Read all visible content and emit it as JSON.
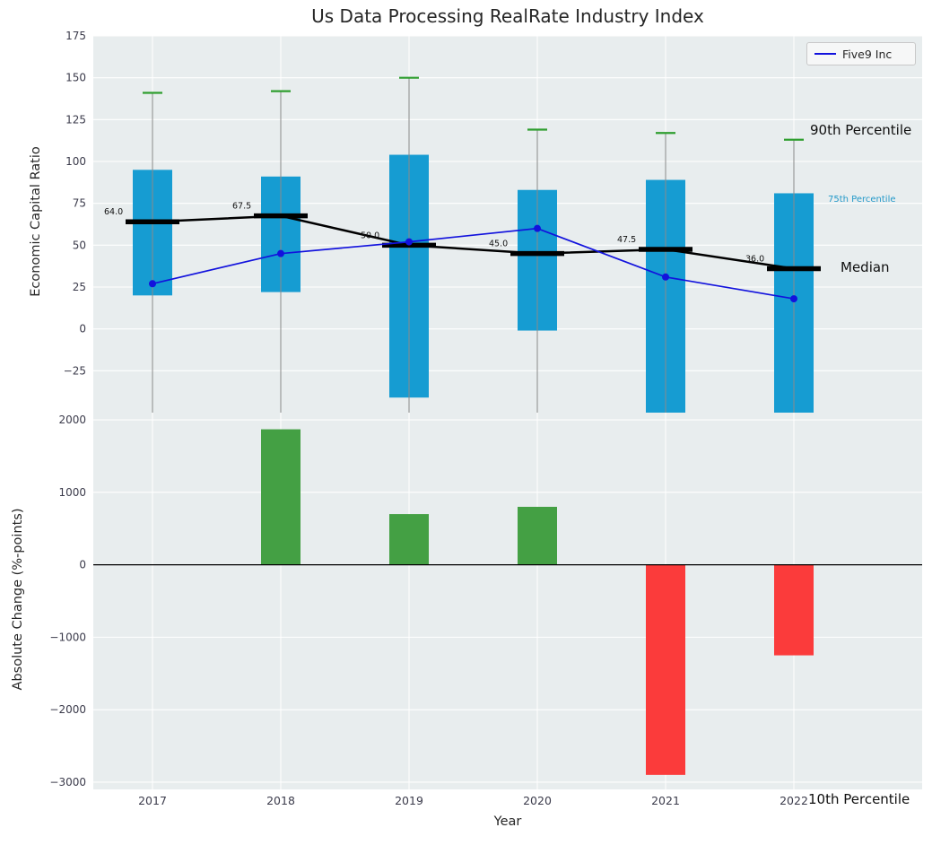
{
  "chart_data": {
    "type": "boxplot-with-line-and-bar",
    "title": "Us Data Processing RealRate Industry Index",
    "xlabel": "Year",
    "categories": [
      "2017",
      "2018",
      "2019",
      "2020",
      "2021",
      "2022"
    ],
    "legend": {
      "label": "Five9 Inc"
    },
    "annotations": {
      "p90": "90th Percentile",
      "p75": "75th Percentile",
      "median": "Median",
      "p10": "10th Percentile"
    },
    "top_chart": {
      "ylabel": "Economic Capital Ratio",
      "ylim": [
        -50,
        175
      ],
      "ytick_values": [
        175,
        150,
        125,
        100,
        75,
        50,
        25,
        0,
        -25
      ],
      "ytick_labels": [
        "175",
        "150",
        "125",
        "100",
        "75",
        "50",
        "25",
        "0",
        "−25"
      ],
      "p90": [
        141,
        142,
        150,
        119,
        117,
        113
      ],
      "p75": [
        95,
        91,
        104,
        83,
        89,
        81
      ],
      "p25": [
        20,
        22,
        -41,
        -1,
        -60,
        -60
      ],
      "median": [
        64.0,
        67.5,
        50.0,
        45.0,
        47.5,
        36.0
      ],
      "median_labels": [
        "64.0",
        "67.5",
        "50.0",
        "45.0",
        "47.5",
        "36.0"
      ],
      "series": {
        "name": "Five9 Inc",
        "values": [
          27,
          45,
          52,
          60,
          31,
          18
        ]
      },
      "colors": {
        "box": "#169cd2",
        "cap": "#2f9e2f",
        "median": "#000000",
        "whisker": "#8a8a8a",
        "series": "#1212dd"
      }
    },
    "bottom_chart": {
      "ylabel": "Absolute Change (%-points)",
      "ylim": [
        -3100,
        2100
      ],
      "ytick_values": [
        2000,
        1000,
        0,
        -1000,
        -2000,
        -3000
      ],
      "ytick_labels": [
        "2000",
        "1000",
        "0",
        "−1000",
        "−2000",
        "−3000"
      ],
      "values": [
        0,
        1870,
        700,
        800,
        -2900,
        -1250
      ],
      "colors": {
        "positive": "#44a044",
        "negative": "#fb3b3b"
      }
    }
  }
}
